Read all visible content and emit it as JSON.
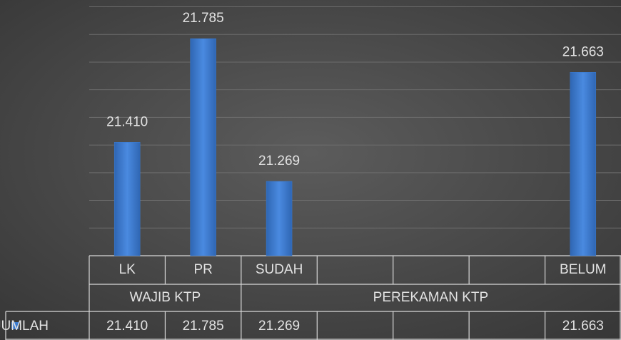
{
  "chart_data": {
    "type": "bar",
    "categories": [
      "LK",
      "PR",
      "SUDAH",
      null,
      null,
      null,
      "BELUM"
    ],
    "groups": [
      {
        "label": "WAJIB KTP",
        "count": 2
      },
      {
        "label": "PEREKAMAN KTP",
        "count": 5
      }
    ],
    "series": [
      {
        "name": "JUMLAH",
        "color": "#3b7bd0",
        "values": [
          21410,
          21785,
          21269,
          null,
          null,
          null,
          21663
        ],
        "value_labels": [
          "21.410",
          "21.785",
          "21.269",
          null,
          null,
          null,
          "21.663"
        ]
      }
    ],
    "ylim": [
      21000,
      21900
    ],
    "yticks": [
      21000,
      21100,
      21200,
      21300,
      21400,
      21500,
      21600,
      21700,
      21800,
      21900
    ],
    "grid": true,
    "data_table": true
  }
}
